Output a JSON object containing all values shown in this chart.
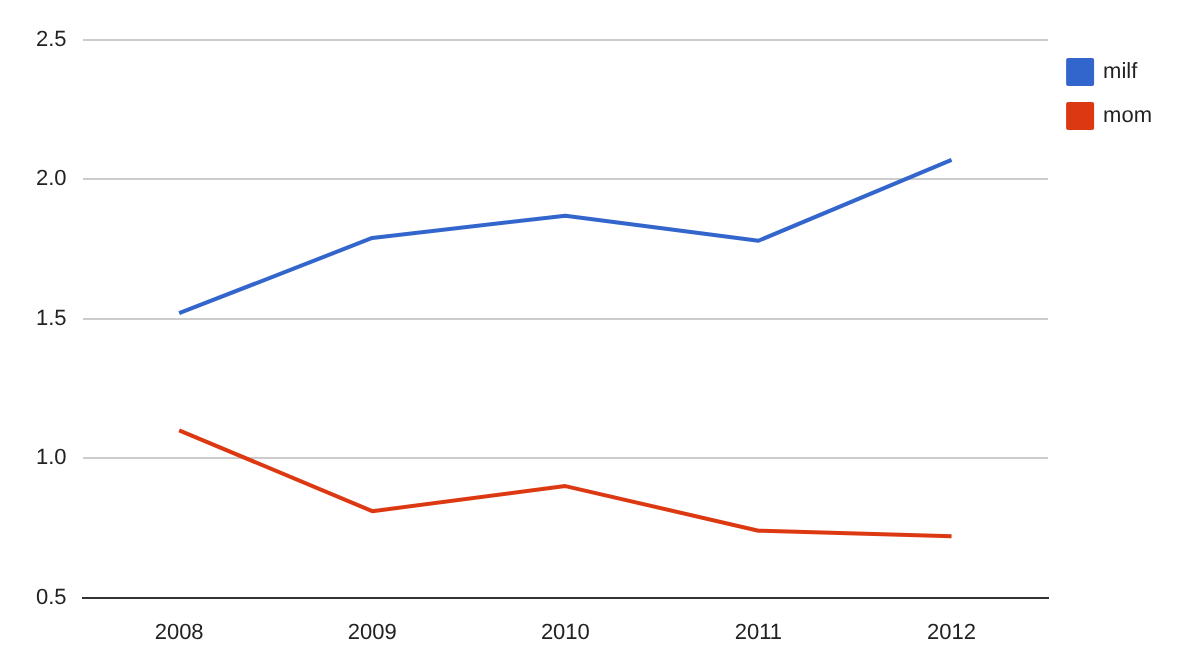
{
  "chart_data": {
    "type": "line",
    "categories": [
      "2008",
      "2009",
      "2010",
      "2011",
      "2012"
    ],
    "series": [
      {
        "name": "milf",
        "color": "#3366cc",
        "values": [
          1.52,
          1.79,
          1.87,
          1.78,
          2.07
        ]
      },
      {
        "name": "mom",
        "color": "#dc3912",
        "values": [
          1.1,
          0.81,
          0.9,
          0.74,
          0.72
        ]
      }
    ],
    "ylim": [
      0.5,
      2.5
    ],
    "yticks": [
      {
        "value": 0.5,
        "label": "0.5"
      },
      {
        "value": 1,
        "label": "1.0"
      },
      {
        "value": 1.5,
        "label": "1.5"
      },
      {
        "value": 2,
        "label": "2.0"
      },
      {
        "value": 2.5,
        "label": "2.5"
      }
    ],
    "grid": "y",
    "legend": "right",
    "marker": "none"
  }
}
